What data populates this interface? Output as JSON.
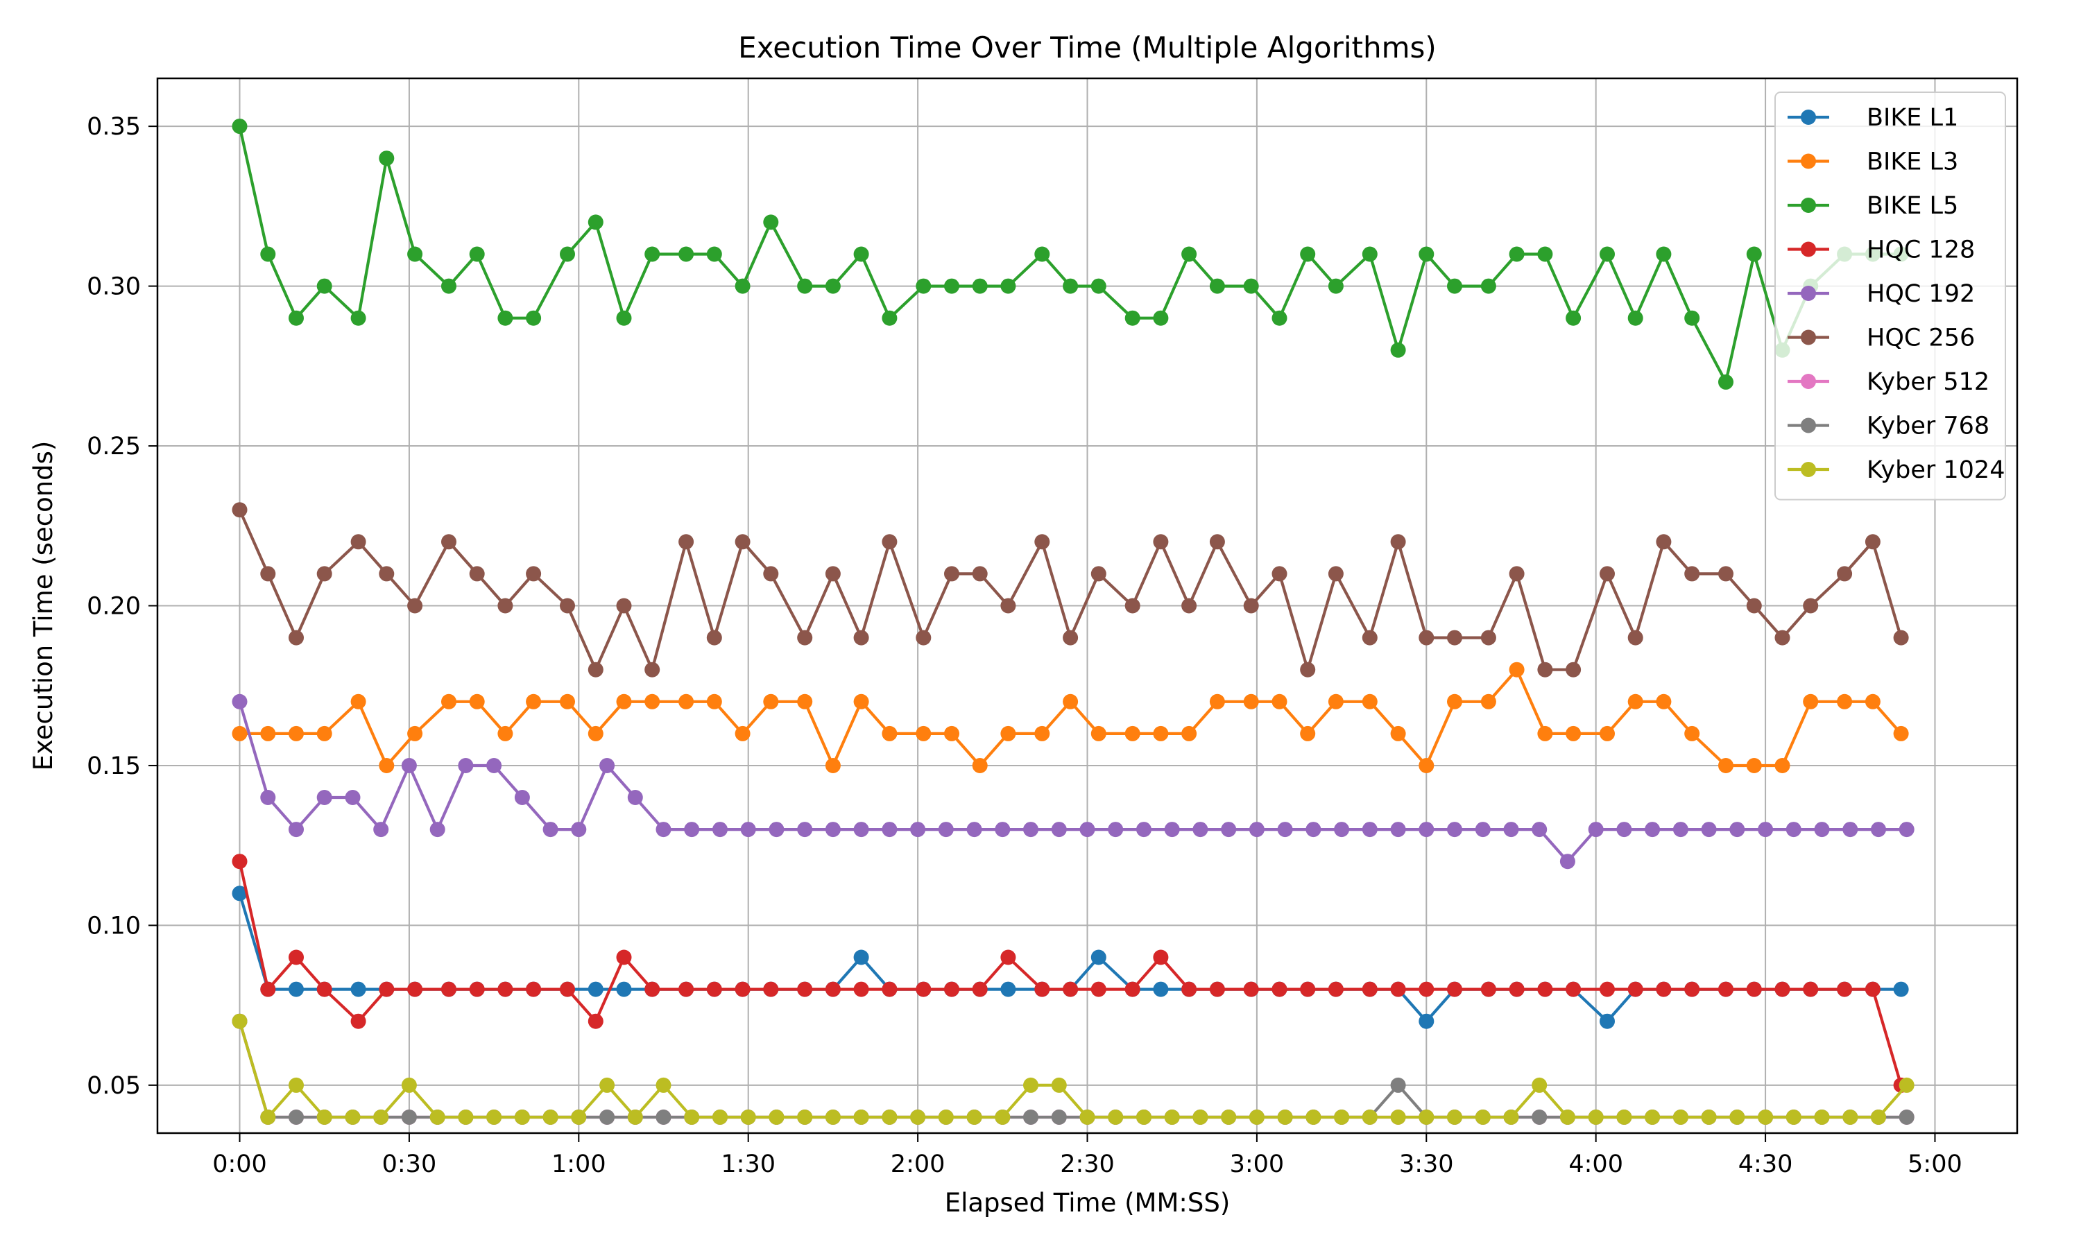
{
  "chart_data": {
    "type": "line",
    "title": "Execution Time Over Time (Multiple Algorithms)",
    "xlabel": "Elapsed Time (MM:SS)",
    "ylabel": "Execution Time (seconds)",
    "xlim": [
      "0:00",
      "5:00"
    ],
    "ylim": [
      0.035,
      0.365
    ],
    "x_ticks": [
      "0:00",
      "0:30",
      "1:00",
      "1:30",
      "2:00",
      "2:30",
      "3:00",
      "3:30",
      "4:00",
      "4:30",
      "5:00"
    ],
    "y_ticks": [
      "0.05",
      "0.10",
      "0.15",
      "0.20",
      "0.25",
      "0.30",
      "0.35"
    ],
    "grid": true,
    "legend_position": "top-right",
    "series": [
      {
        "name": "BIKE L1",
        "color": "#1f77b4",
        "x": [
          "0:00",
          "0:05",
          "0:10",
          "0:15",
          "0:21",
          "0:26",
          "0:31",
          "0:37",
          "0:42",
          "0:47",
          "0:52",
          "0:58",
          "1:03",
          "1:08",
          "1:13",
          "1:19",
          "1:24",
          "1:29",
          "1:34",
          "1:40",
          "1:45",
          "1:50",
          "1:55",
          "2:01",
          "2:06",
          "2:11",
          "2:16",
          "2:22",
          "2:27",
          "2:32",
          "2:38",
          "2:43",
          "2:48",
          "2:53",
          "2:59",
          "3:04",
          "3:09",
          "3:14",
          "3:20",
          "3:25",
          "3:30",
          "3:35",
          "3:41",
          "3:46",
          "3:51",
          "3:56",
          "4:02",
          "4:07",
          "4:12",
          "4:17",
          "4:23",
          "4:28",
          "4:33",
          "4:38",
          "4:44",
          "4:49",
          "4:54"
        ],
        "y": [
          0.11,
          0.08,
          0.08,
          0.08,
          0.08,
          0.08,
          0.08,
          0.08,
          0.08,
          0.08,
          0.08,
          0.08,
          0.08,
          0.08,
          0.08,
          0.08,
          0.08,
          0.08,
          0.08,
          0.08,
          0.08,
          0.09,
          0.08,
          0.08,
          0.08,
          0.08,
          0.08,
          0.08,
          0.08,
          0.09,
          0.08,
          0.08,
          0.08,
          0.08,
          0.08,
          0.08,
          0.08,
          0.08,
          0.08,
          0.08,
          0.07,
          0.08,
          0.08,
          0.08,
          0.08,
          0.08,
          0.07,
          0.08,
          0.08,
          0.08,
          0.08,
          0.08,
          0.08,
          0.08,
          0.08,
          0.08,
          0.08
        ]
      },
      {
        "name": "BIKE L3",
        "color": "#ff7f0e",
        "x": [
          "0:00",
          "0:05",
          "0:10",
          "0:15",
          "0:21",
          "0:26",
          "0:31",
          "0:37",
          "0:42",
          "0:47",
          "0:52",
          "0:58",
          "1:03",
          "1:08",
          "1:13",
          "1:19",
          "1:24",
          "1:29",
          "1:34",
          "1:40",
          "1:45",
          "1:50",
          "1:55",
          "2:01",
          "2:06",
          "2:11",
          "2:16",
          "2:22",
          "2:27",
          "2:32",
          "2:38",
          "2:43",
          "2:48",
          "2:53",
          "2:59",
          "3:04",
          "3:09",
          "3:14",
          "3:20",
          "3:25",
          "3:30",
          "3:35",
          "3:41",
          "3:46",
          "3:51",
          "3:56",
          "4:02",
          "4:07",
          "4:12",
          "4:17",
          "4:23",
          "4:28",
          "4:33",
          "4:38",
          "4:44",
          "4:49",
          "4:54"
        ],
        "y": [
          0.16,
          0.16,
          0.16,
          0.16,
          0.17,
          0.15,
          0.16,
          0.17,
          0.17,
          0.16,
          0.17,
          0.17,
          0.16,
          0.17,
          0.17,
          0.17,
          0.17,
          0.16,
          0.17,
          0.17,
          0.15,
          0.17,
          0.16,
          0.16,
          0.16,
          0.15,
          0.16,
          0.16,
          0.17,
          0.16,
          0.16,
          0.16,
          0.16,
          0.17,
          0.17,
          0.17,
          0.16,
          0.17,
          0.17,
          0.16,
          0.15,
          0.17,
          0.17,
          0.18,
          0.16,
          0.16,
          0.16,
          0.17,
          0.17,
          0.16,
          0.15,
          0.15,
          0.15,
          0.17,
          0.17,
          0.17,
          0.16
        ]
      },
      {
        "name": "BIKE L5",
        "color": "#2ca02c",
        "x": [
          "0:00",
          "0:05",
          "0:10",
          "0:15",
          "0:21",
          "0:26",
          "0:31",
          "0:37",
          "0:42",
          "0:47",
          "0:52",
          "0:58",
          "1:03",
          "1:08",
          "1:13",
          "1:19",
          "1:24",
          "1:29",
          "1:34",
          "1:40",
          "1:45",
          "1:50",
          "1:55",
          "2:01",
          "2:06",
          "2:11",
          "2:16",
          "2:22",
          "2:27",
          "2:32",
          "2:38",
          "2:43",
          "2:48",
          "2:53",
          "2:59",
          "3:04",
          "3:09",
          "3:14",
          "3:20",
          "3:25",
          "3:30",
          "3:35",
          "3:41",
          "3:46",
          "3:51",
          "3:56",
          "4:02",
          "4:07",
          "4:12",
          "4:17",
          "4:23",
          "4:28",
          "4:33",
          "4:38",
          "4:44",
          "4:49",
          "4:54"
        ],
        "y": [
          0.35,
          0.31,
          0.29,
          0.3,
          0.29,
          0.34,
          0.31,
          0.3,
          0.31,
          0.29,
          0.29,
          0.31,
          0.32,
          0.29,
          0.31,
          0.31,
          0.31,
          0.3,
          0.32,
          0.3,
          0.3,
          0.31,
          0.29,
          0.3,
          0.3,
          0.3,
          0.3,
          0.31,
          0.3,
          0.3,
          0.29,
          0.29,
          0.31,
          0.3,
          0.3,
          0.29,
          0.31,
          0.3,
          0.31,
          0.28,
          0.31,
          0.3,
          0.3,
          0.31,
          0.31,
          0.29,
          0.31,
          0.29,
          0.31,
          0.29,
          0.27,
          0.31,
          0.28,
          0.3,
          0.31,
          0.31,
          0.31
        ]
      },
      {
        "name": "HQC 128",
        "color": "#d62728",
        "x": [
          "0:00",
          "0:05",
          "0:10",
          "0:15",
          "0:21",
          "0:26",
          "0:31",
          "0:37",
          "0:42",
          "0:47",
          "0:52",
          "0:58",
          "1:03",
          "1:08",
          "1:13",
          "1:19",
          "1:24",
          "1:29",
          "1:34",
          "1:40",
          "1:45",
          "1:50",
          "1:55",
          "2:01",
          "2:06",
          "2:11",
          "2:16",
          "2:22",
          "2:27",
          "2:32",
          "2:38",
          "2:43",
          "2:48",
          "2:53",
          "2:59",
          "3:04",
          "3:09",
          "3:14",
          "3:20",
          "3:25",
          "3:30",
          "3:35",
          "3:41",
          "3:46",
          "3:51",
          "3:56",
          "4:02",
          "4:07",
          "4:12",
          "4:17",
          "4:23",
          "4:28",
          "4:33",
          "4:38",
          "4:44",
          "4:49",
          "4:54"
        ],
        "y": [
          0.12,
          0.08,
          0.09,
          0.08,
          0.07,
          0.08,
          0.08,
          0.08,
          0.08,
          0.08,
          0.08,
          0.08,
          0.07,
          0.09,
          0.08,
          0.08,
          0.08,
          0.08,
          0.08,
          0.08,
          0.08,
          0.08,
          0.08,
          0.08,
          0.08,
          0.08,
          0.09,
          0.08,
          0.08,
          0.08,
          0.08,
          0.09,
          0.08,
          0.08,
          0.08,
          0.08,
          0.08,
          0.08,
          0.08,
          0.08,
          0.08,
          0.08,
          0.08,
          0.08,
          0.08,
          0.08,
          0.08,
          0.08,
          0.08,
          0.08,
          0.08,
          0.08,
          0.08,
          0.08,
          0.08,
          0.08,
          0.05
        ]
      },
      {
        "name": "HQC 192",
        "color": "#9467bd",
        "x": [
          "0:00",
          "0:05",
          "0:10",
          "0:15",
          "0:20",
          "0:25",
          "0:30",
          "0:35",
          "0:40",
          "0:45",
          "0:50",
          "0:55",
          "1:00",
          "1:05",
          "1:10",
          "1:15",
          "1:20",
          "1:25",
          "1:30",
          "1:35",
          "1:40",
          "1:45",
          "1:50",
          "1:55",
          "2:00",
          "2:05",
          "2:10",
          "2:15",
          "2:20",
          "2:25",
          "2:30",
          "2:35",
          "2:40",
          "2:45",
          "2:50",
          "2:55",
          "3:00",
          "3:05",
          "3:10",
          "3:15",
          "3:20",
          "3:25",
          "3:30",
          "3:35",
          "3:40",
          "3:45",
          "3:50",
          "3:55",
          "4:00",
          "4:05",
          "4:10",
          "4:15",
          "4:20",
          "4:25",
          "4:30",
          "4:35",
          "4:40",
          "4:45",
          "4:50",
          "4:55"
        ],
        "y": [
          0.17,
          0.14,
          0.13,
          0.14,
          0.14,
          0.13,
          0.15,
          0.13,
          0.15,
          0.15,
          0.14,
          0.13,
          0.13,
          0.15,
          0.14,
          0.13,
          0.13,
          0.13,
          0.13,
          0.13,
          0.13,
          0.13,
          0.13,
          0.13,
          0.13,
          0.13,
          0.13,
          0.13,
          0.13,
          0.13,
          0.13,
          0.13,
          0.13,
          0.13,
          0.13,
          0.13,
          0.13,
          0.13,
          0.13,
          0.13,
          0.13,
          0.13,
          0.13,
          0.13,
          0.13,
          0.13,
          0.13,
          0.12,
          0.13,
          0.13,
          0.13,
          0.13,
          0.13,
          0.13,
          0.13,
          0.13,
          0.13,
          0.13,
          0.13,
          0.13
        ]
      },
      {
        "name": "HQC 256",
        "color": "#8c564b",
        "x": [
          "0:00",
          "0:05",
          "0:10",
          "0:15",
          "0:21",
          "0:26",
          "0:31",
          "0:37",
          "0:42",
          "0:47",
          "0:52",
          "0:58",
          "1:03",
          "1:08",
          "1:13",
          "1:19",
          "1:24",
          "1:29",
          "1:34",
          "1:40",
          "1:45",
          "1:50",
          "1:55",
          "2:01",
          "2:06",
          "2:11",
          "2:16",
          "2:22",
          "2:27",
          "2:32",
          "2:38",
          "2:43",
          "2:48",
          "2:53",
          "2:59",
          "3:04",
          "3:09",
          "3:14",
          "3:20",
          "3:25",
          "3:30",
          "3:35",
          "3:41",
          "3:46",
          "3:51",
          "3:56",
          "4:02",
          "4:07",
          "4:12",
          "4:17",
          "4:23",
          "4:28",
          "4:33",
          "4:38",
          "4:44",
          "4:49",
          "4:54"
        ],
        "y": [
          0.23,
          0.21,
          0.19,
          0.21,
          0.22,
          0.21,
          0.2,
          0.22,
          0.21,
          0.2,
          0.21,
          0.2,
          0.18,
          0.2,
          0.18,
          0.22,
          0.19,
          0.22,
          0.21,
          0.19,
          0.21,
          0.19,
          0.22,
          0.19,
          0.21,
          0.21,
          0.2,
          0.22,
          0.19,
          0.21,
          0.2,
          0.22,
          0.2,
          0.22,
          0.2,
          0.21,
          0.18,
          0.21,
          0.19,
          0.22,
          0.19,
          0.19,
          0.19,
          0.21,
          0.18,
          0.18,
          0.21,
          0.19,
          0.22,
          0.21,
          0.21,
          0.2,
          0.19,
          0.2,
          0.21,
          0.22,
          0.19
        ]
      },
      {
        "name": "Kyber 512",
        "color": "#e377c2",
        "x": [
          "0:00",
          "0:05",
          "0:10",
          "0:15",
          "0:20",
          "0:25",
          "0:30",
          "0:35",
          "0:40",
          "0:45",
          "0:50",
          "0:55",
          "1:00",
          "1:05",
          "1:10",
          "1:15",
          "1:20",
          "1:25",
          "1:30",
          "1:35",
          "1:40",
          "1:45",
          "1:50",
          "1:55",
          "2:00",
          "2:05",
          "2:10",
          "2:15",
          "2:20",
          "2:25",
          "2:30",
          "2:35",
          "2:40",
          "2:45",
          "2:50",
          "2:55",
          "3:00",
          "3:05",
          "3:10",
          "3:15",
          "3:20",
          "3:25",
          "3:30",
          "3:35",
          "3:40",
          "3:45",
          "3:50",
          "3:55",
          "4:00",
          "4:05",
          "4:10",
          "4:15",
          "4:20",
          "4:25",
          "4:30",
          "4:35",
          "4:40",
          "4:45",
          "4:50",
          "4:55"
        ],
        "y": [
          0.07,
          0.04,
          0.04,
          0.04,
          0.04,
          0.04,
          0.04,
          0.04,
          0.04,
          0.04,
          0.04,
          0.04,
          0.04,
          0.04,
          0.04,
          0.04,
          0.04,
          0.04,
          0.04,
          0.04,
          0.04,
          0.04,
          0.04,
          0.04,
          0.04,
          0.04,
          0.04,
          0.04,
          0.04,
          0.04,
          0.04,
          0.04,
          0.04,
          0.04,
          0.04,
          0.04,
          0.04,
          0.04,
          0.04,
          0.04,
          0.04,
          0.04,
          0.04,
          0.04,
          0.04,
          0.04,
          0.04,
          0.04,
          0.04,
          0.04,
          0.04,
          0.04,
          0.04,
          0.04,
          0.04,
          0.04,
          0.04,
          0.04,
          0.04,
          0.04
        ]
      },
      {
        "name": "Kyber 768",
        "color": "#7f7f7f",
        "x": [
          "0:00",
          "0:05",
          "0:10",
          "0:15",
          "0:20",
          "0:25",
          "0:30",
          "0:35",
          "0:40",
          "0:45",
          "0:50",
          "0:55",
          "1:00",
          "1:05",
          "1:10",
          "1:15",
          "1:20",
          "1:25",
          "1:30",
          "1:35",
          "1:40",
          "1:45",
          "1:50",
          "1:55",
          "2:00",
          "2:05",
          "2:10",
          "2:15",
          "2:20",
          "2:25",
          "2:30",
          "2:35",
          "2:40",
          "2:45",
          "2:50",
          "2:55",
          "3:00",
          "3:05",
          "3:10",
          "3:15",
          "3:20",
          "3:25",
          "3:30",
          "3:35",
          "3:40",
          "3:45",
          "3:50",
          "3:55",
          "4:00",
          "4:05",
          "4:10",
          "4:15",
          "4:20",
          "4:25",
          "4:30",
          "4:35",
          "4:40",
          "4:45",
          "4:50",
          "4:55"
        ],
        "y": [
          0.07,
          0.04,
          0.04,
          0.04,
          0.04,
          0.04,
          0.04,
          0.04,
          0.04,
          0.04,
          0.04,
          0.04,
          0.04,
          0.04,
          0.04,
          0.04,
          0.04,
          0.04,
          0.04,
          0.04,
          0.04,
          0.04,
          0.04,
          0.04,
          0.04,
          0.04,
          0.04,
          0.04,
          0.04,
          0.04,
          0.04,
          0.04,
          0.04,
          0.04,
          0.04,
          0.04,
          0.04,
          0.04,
          0.04,
          0.04,
          0.04,
          0.05,
          0.04,
          0.04,
          0.04,
          0.04,
          0.04,
          0.04,
          0.04,
          0.04,
          0.04,
          0.04,
          0.04,
          0.04,
          0.04,
          0.04,
          0.04,
          0.04,
          0.04,
          0.04
        ]
      },
      {
        "name": "Kyber 1024",
        "color": "#bcbd22",
        "x": [
          "0:00",
          "0:05",
          "0:10",
          "0:15",
          "0:20",
          "0:25",
          "0:30",
          "0:35",
          "0:40",
          "0:45",
          "0:50",
          "0:55",
          "1:00",
          "1:05",
          "1:10",
          "1:15",
          "1:20",
          "1:25",
          "1:30",
          "1:35",
          "1:40",
          "1:45",
          "1:50",
          "1:55",
          "2:00",
          "2:05",
          "2:10",
          "2:15",
          "2:20",
          "2:25",
          "2:30",
          "2:35",
          "2:40",
          "2:45",
          "2:50",
          "2:55",
          "3:00",
          "3:05",
          "3:10",
          "3:15",
          "3:20",
          "3:25",
          "3:30",
          "3:35",
          "3:40",
          "3:45",
          "3:50",
          "3:55",
          "4:00",
          "4:05",
          "4:10",
          "4:15",
          "4:20",
          "4:25",
          "4:30",
          "4:35",
          "4:40",
          "4:45",
          "4:50",
          "4:55"
        ],
        "y": [
          0.07,
          0.04,
          0.05,
          0.04,
          0.04,
          0.04,
          0.05,
          0.04,
          0.04,
          0.04,
          0.04,
          0.04,
          0.04,
          0.05,
          0.04,
          0.05,
          0.04,
          0.04,
          0.04,
          0.04,
          0.04,
          0.04,
          0.04,
          0.04,
          0.04,
          0.04,
          0.04,
          0.04,
          0.05,
          0.05,
          0.04,
          0.04,
          0.04,
          0.04,
          0.04,
          0.04,
          0.04,
          0.04,
          0.04,
          0.04,
          0.04,
          0.04,
          0.04,
          0.04,
          0.04,
          0.04,
          0.05,
          0.04,
          0.04,
          0.04,
          0.04,
          0.04,
          0.04,
          0.04,
          0.04,
          0.04,
          0.04,
          0.04,
          0.04,
          0.05
        ]
      }
    ]
  }
}
